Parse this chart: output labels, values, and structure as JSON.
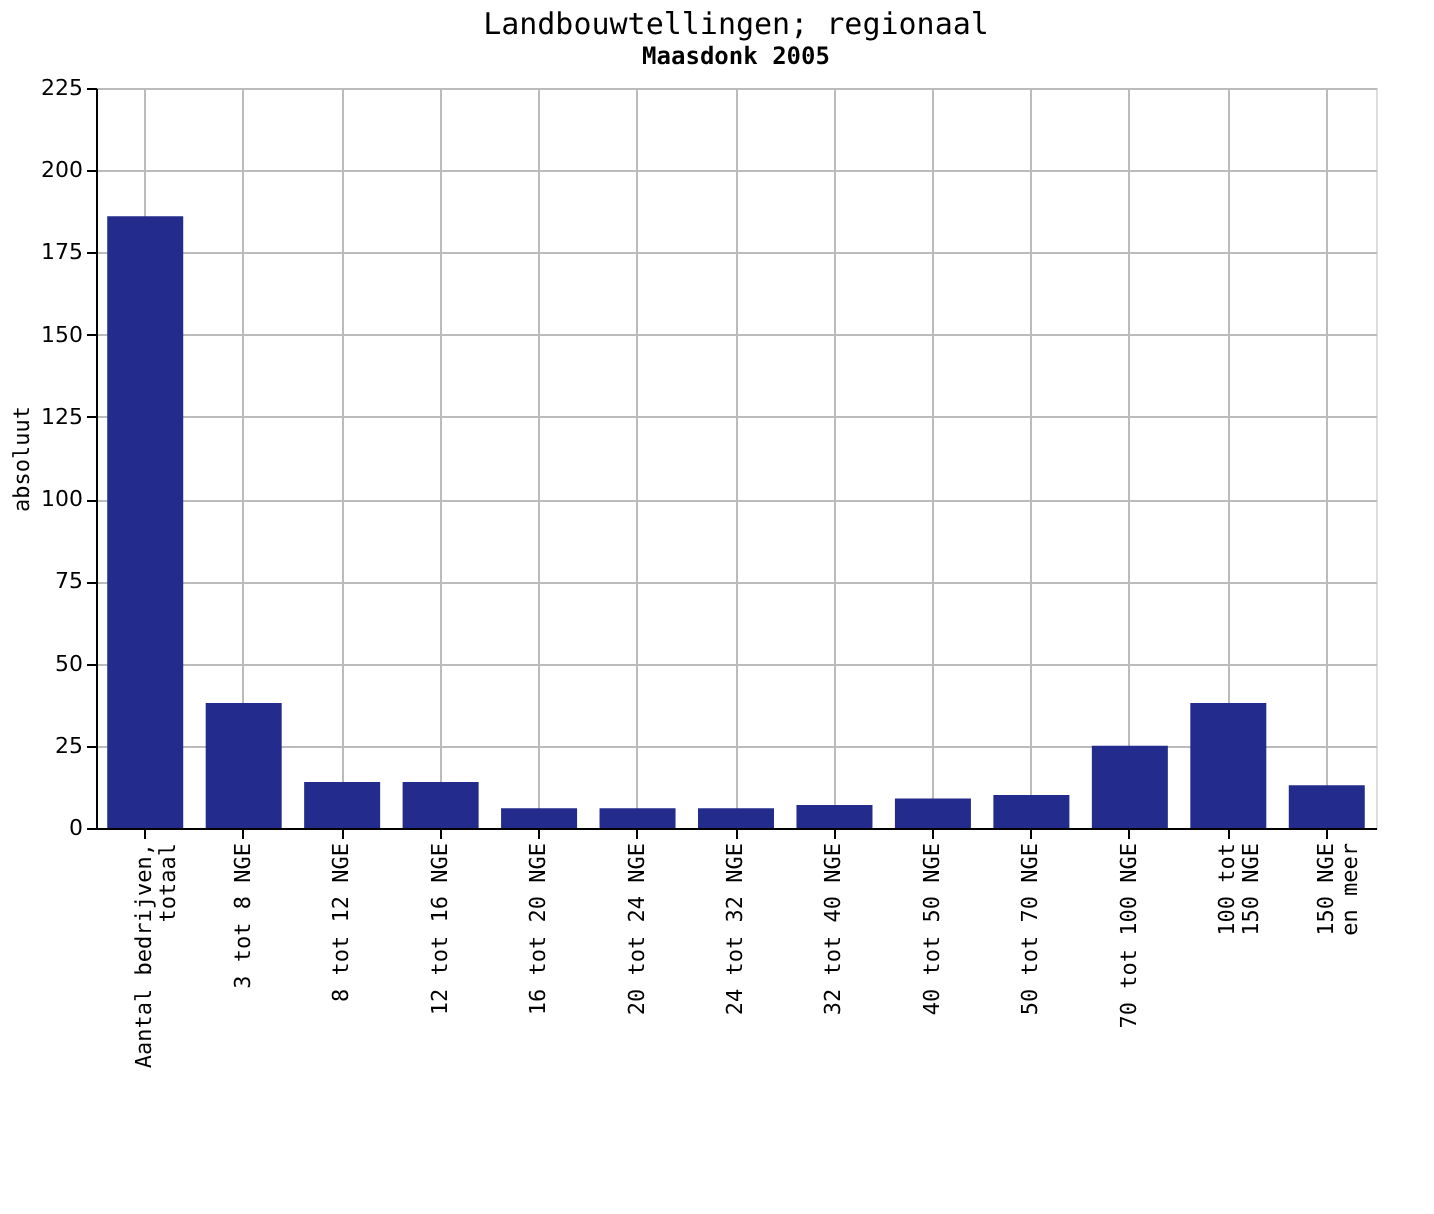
{
  "chart_data": {
    "type": "bar",
    "title": "Landbouwtellingen; regionaal",
    "subtitle": "Maasdonk 2005",
    "ylabel": "absoluut",
    "categories": [
      "Aantal bedrijven,\ntotaal",
      "3 tot 8 NGE",
      "8 tot 12 NGE",
      "12 tot 16 NGE",
      "16 tot 20 NGE",
      "20 tot 24 NGE",
      "24 tot 32 NGE",
      "32 tot 40 NGE",
      "40 tot 50 NGE",
      "50 tot 70 NGE",
      "70 tot 100 NGE",
      "100 tot\n150 NGE",
      "150 NGE\nen meer"
    ],
    "values": [
      186,
      38,
      14,
      14,
      6,
      6,
      6,
      7,
      9,
      10,
      25,
      38,
      13
    ],
    "color": "#232b8c",
    "ylim": [
      0,
      225
    ],
    "yticks": [
      0,
      25,
      50,
      75,
      100,
      125,
      150,
      175,
      200,
      225
    ],
    "grid": true
  }
}
